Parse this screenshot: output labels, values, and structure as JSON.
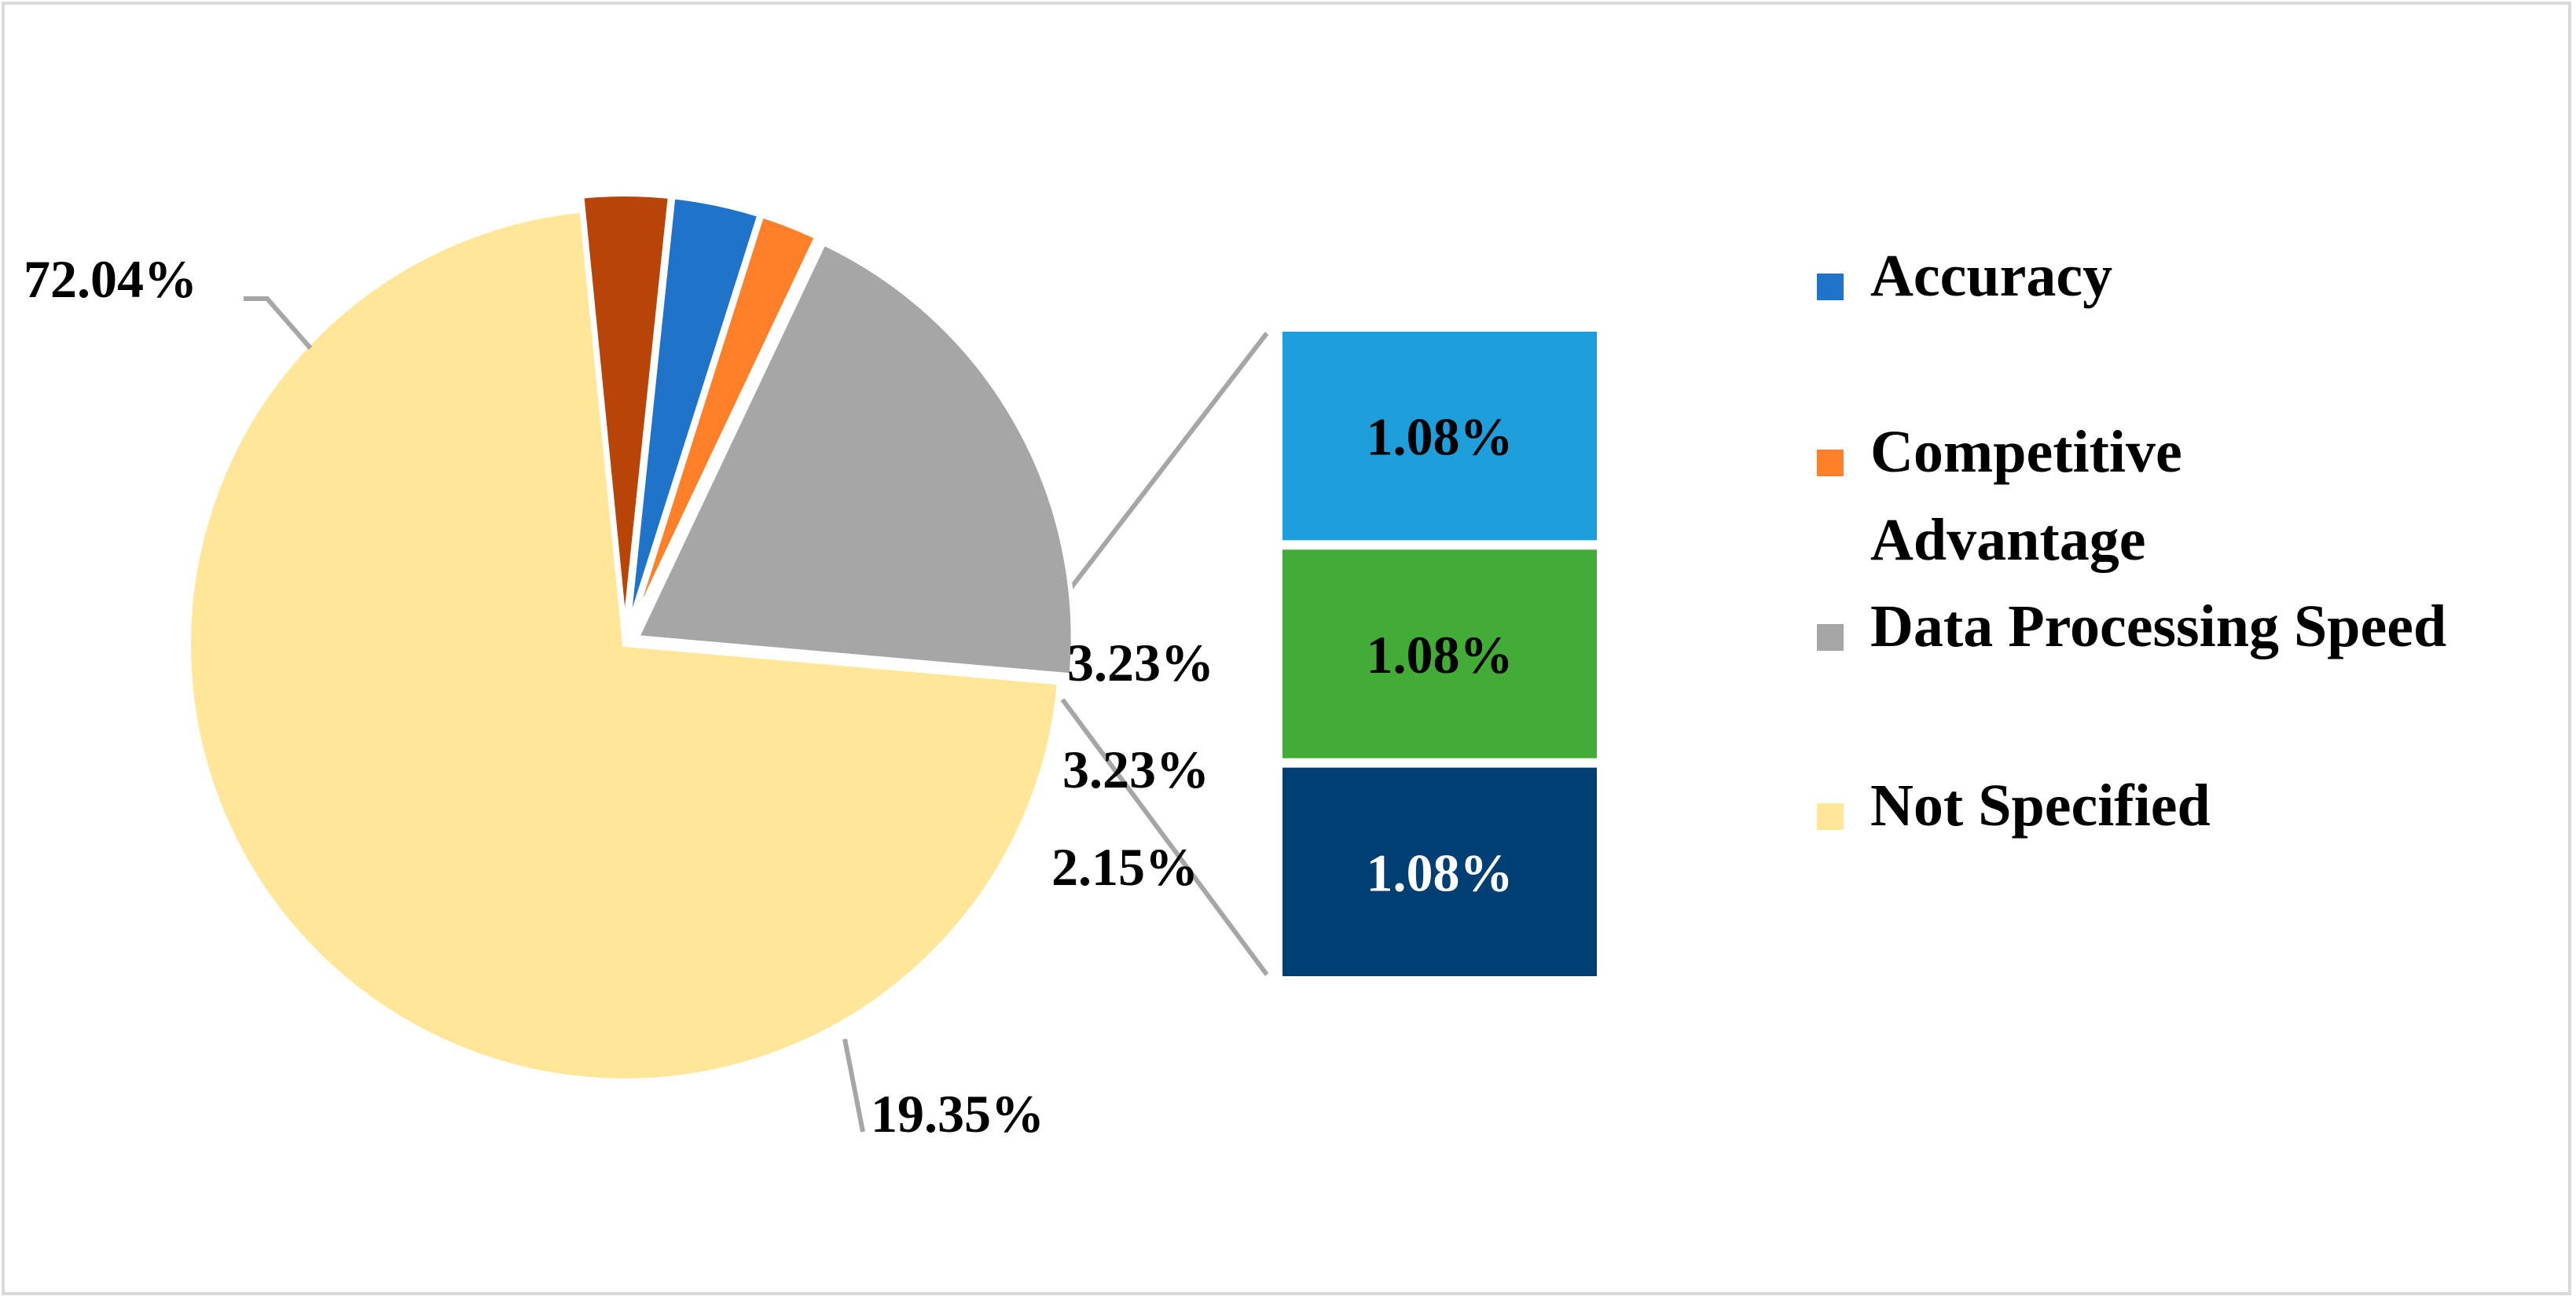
{
  "chart_data": {
    "type": "bar-of-pie",
    "pie": {
      "slices": [
        {
          "name": "Not Specified",
          "value": 72.04,
          "label": "72.04%",
          "color": "#FFE699"
        },
        {
          "name": "",
          "value": 3.23,
          "label": "3.23%",
          "color": "#B84507"
        },
        {
          "name": "Accuracy",
          "value": 3.23,
          "label": "3.23%",
          "color": "#1F74C9"
        },
        {
          "name": "Competitive Advantage",
          "value": 2.15,
          "label": "2.15%",
          "color": "#FF8028"
        },
        {
          "name": "Data Processing Speed",
          "value": 19.35,
          "label": "19.35%",
          "color": "#A6A6A6"
        }
      ]
    },
    "bar": {
      "segments": [
        {
          "value": 1.08,
          "label": "1.08%",
          "color": "#1E9FDC",
          "text_color": "#000000"
        },
        {
          "value": 1.08,
          "label": "1.08%",
          "color": "#43AC36",
          "text_color": "#000000"
        },
        {
          "value": 1.08,
          "label": "1.08%",
          "color": "#003F74",
          "text_color": "#ffffff"
        }
      ]
    },
    "legend": {
      "placement": "right",
      "entries": [
        {
          "label_lines": [
            "Accuracy"
          ],
          "color": "#1F74C9"
        },
        {
          "label_lines": [
            "Competitive",
            "Advantage"
          ],
          "color": "#FF8028"
        },
        {
          "label_lines": [
            "Data Processing Speed"
          ],
          "color": "#A6A6A6"
        },
        {
          "label_lines": [
            "Not Specified"
          ],
          "color": "#FFE699"
        }
      ]
    },
    "leader_color": "#A6A6A6"
  }
}
